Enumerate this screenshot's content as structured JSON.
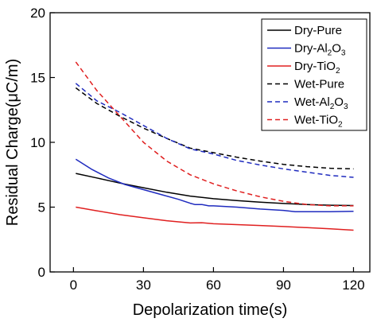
{
  "chart_data": {
    "type": "line",
    "xlabel": "Depolarization time(s)",
    "ylabel": "Residual Charge(μC/m)",
    "xlim": [
      -10,
      127
    ],
    "ylim": [
      0,
      20
    ],
    "xticks": [
      0,
      30,
      60,
      90,
      120
    ],
    "yticks": [
      0,
      5,
      10,
      15,
      20
    ],
    "legend_position": "top-right",
    "grid": false,
    "series": [
      {
        "name": "Dry-Pure",
        "legend_parts": [
          {
            "t": "Dry-Pure",
            "sub": false
          }
        ],
        "color": "#000000",
        "dash": "solid",
        "points": [
          [
            1,
            7.6
          ],
          [
            10,
            7.25
          ],
          [
            20,
            6.85
          ],
          [
            30,
            6.5
          ],
          [
            40,
            6.15
          ],
          [
            50,
            5.85
          ],
          [
            60,
            5.65
          ],
          [
            70,
            5.5
          ],
          [
            80,
            5.38
          ],
          [
            90,
            5.28
          ],
          [
            100,
            5.2
          ],
          [
            110,
            5.15
          ],
          [
            120,
            5.12
          ]
        ]
      },
      {
        "name": "Dry-Al2O3",
        "legend_parts": [
          {
            "t": "Dry-Al",
            "sub": false
          },
          {
            "t": "2",
            "sub": true
          },
          {
            "t": "O",
            "sub": false
          },
          {
            "t": "3",
            "sub": true
          }
        ],
        "color": "#1f2bbf",
        "dash": "solid",
        "points": [
          [
            1,
            8.7
          ],
          [
            8,
            7.9
          ],
          [
            15,
            7.25
          ],
          [
            22,
            6.75
          ],
          [
            30,
            6.35
          ],
          [
            38,
            5.95
          ],
          [
            45,
            5.6
          ],
          [
            50,
            5.3
          ],
          [
            52,
            5.2
          ],
          [
            55,
            5.2
          ],
          [
            58,
            5.1
          ],
          [
            60,
            5.1
          ],
          [
            70,
            5.0
          ],
          [
            80,
            4.85
          ],
          [
            90,
            4.75
          ],
          [
            95,
            4.65
          ],
          [
            100,
            4.65
          ],
          [
            110,
            4.65
          ],
          [
            120,
            4.68
          ]
        ]
      },
      {
        "name": "Dry-TiO2",
        "legend_parts": [
          {
            "t": "Dry-TiO",
            "sub": false
          },
          {
            "t": "2",
            "sub": true
          }
        ],
        "color": "#e02020",
        "dash": "solid",
        "points": [
          [
            1,
            5.0
          ],
          [
            10,
            4.72
          ],
          [
            20,
            4.42
          ],
          [
            30,
            4.18
          ],
          [
            40,
            3.95
          ],
          [
            50,
            3.78
          ],
          [
            55,
            3.8
          ],
          [
            60,
            3.72
          ],
          [
            70,
            3.65
          ],
          [
            80,
            3.58
          ],
          [
            90,
            3.5
          ],
          [
            100,
            3.42
          ],
          [
            110,
            3.33
          ],
          [
            120,
            3.22
          ]
        ]
      },
      {
        "name": "Wet-Pure",
        "legend_parts": [
          {
            "t": "Wet-Pure",
            "sub": false
          }
        ],
        "color": "#000000",
        "dash": "dashed",
        "points": [
          [
            1,
            14.2
          ],
          [
            10,
            13.0
          ],
          [
            20,
            12.0
          ],
          [
            30,
            11.1
          ],
          [
            40,
            10.3
          ],
          [
            50,
            9.55
          ],
          [
            60,
            9.2
          ],
          [
            70,
            8.85
          ],
          [
            80,
            8.55
          ],
          [
            90,
            8.3
          ],
          [
            100,
            8.12
          ],
          [
            110,
            8.0
          ],
          [
            120,
            7.95
          ]
        ]
      },
      {
        "name": "Wet-Al2O3",
        "legend_parts": [
          {
            "t": "Wet-Al",
            "sub": false
          },
          {
            "t": "2",
            "sub": true
          },
          {
            "t": "O",
            "sub": false
          },
          {
            "t": "3",
            "sub": true
          }
        ],
        "color": "#1f2bbf",
        "dash": "dashed",
        "points": [
          [
            1,
            14.55
          ],
          [
            10,
            13.2
          ],
          [
            20,
            12.3
          ],
          [
            30,
            11.3
          ],
          [
            40,
            10.3
          ],
          [
            50,
            9.5
          ],
          [
            60,
            9.1
          ],
          [
            70,
            8.6
          ],
          [
            80,
            8.25
          ],
          [
            90,
            7.95
          ],
          [
            100,
            7.7
          ],
          [
            110,
            7.45
          ],
          [
            120,
            7.3
          ]
        ]
      },
      {
        "name": "Wet-TiO2",
        "legend_parts": [
          {
            "t": "Wet-TiO",
            "sub": false
          },
          {
            "t": "2",
            "sub": true
          }
        ],
        "color": "#e02020",
        "dash": "dashed",
        "points": [
          [
            1,
            16.2
          ],
          [
            10,
            14.0
          ],
          [
            20,
            12.0
          ],
          [
            30,
            10.0
          ],
          [
            40,
            8.55
          ],
          [
            50,
            7.5
          ],
          [
            60,
            6.8
          ],
          [
            70,
            6.25
          ],
          [
            80,
            5.8
          ],
          [
            90,
            5.45
          ],
          [
            100,
            5.2
          ],
          [
            110,
            5.1
          ],
          [
            120,
            5.1
          ]
        ]
      }
    ]
  }
}
